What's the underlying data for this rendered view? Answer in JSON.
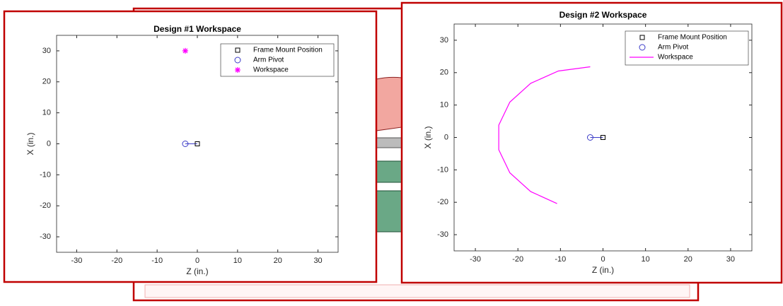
{
  "chart_data": [
    {
      "type": "scatter",
      "title": "Design #1 Workspace",
      "x_label": "Z (in.)",
      "y_label": "X (in.)",
      "xlim": [
        -35,
        35
      ],
      "ylim": [
        -35,
        35
      ],
      "xticks": [
        -30,
        -20,
        -10,
        0,
        10,
        20,
        30
      ],
      "yticks": [
        -30,
        -20,
        -10,
        0,
        10,
        20,
        30
      ],
      "legend": "top-right",
      "series": [
        {
          "name": "Frame Mount Position",
          "marker": "square",
          "color": "#000000",
          "x": [
            0
          ],
          "values": [
            0
          ]
        },
        {
          "name": "Arm Pivot",
          "marker": "circle",
          "color": "#3c3cc8",
          "x": [
            -3
          ],
          "values": [
            0
          ]
        },
        {
          "name": "Workspace",
          "marker": "star",
          "color": "#ff00ff",
          "x": [
            -3
          ],
          "values": [
            30
          ]
        }
      ]
    },
    {
      "type": "scatter",
      "title": "Design #2 Workspace",
      "x_label": "Z (in.)",
      "y_label": "X (in.)",
      "xlim": [
        -35,
        35
      ],
      "ylim": [
        -35,
        35
      ],
      "xticks": [
        -30,
        -20,
        -10,
        0,
        10,
        20,
        30
      ],
      "yticks": [
        -30,
        -20,
        -10,
        0,
        10,
        20,
        30
      ],
      "legend": "top-right",
      "series": [
        {
          "name": "Frame Mount Position",
          "marker": "square",
          "color": "#000000",
          "x": [
            0
          ],
          "values": [
            0
          ]
        },
        {
          "name": "Arm Pivot",
          "marker": "circle",
          "color": "#3c3cc8",
          "x": [
            -3
          ],
          "values": [
            0
          ]
        },
        {
          "name": "Workspace",
          "marker": "line",
          "color": "#ff00ff",
          "x": [
            -3,
            -10.5,
            -17.0,
            -21.9,
            -24.5,
            -24.5,
            -21.9,
            -17.0,
            -10.8
          ],
          "values": [
            21.8,
            20.5,
            16.7,
            10.9,
            3.8,
            -3.8,
            -10.9,
            -16.7,
            -20.4
          ]
        }
      ]
    }
  ]
}
